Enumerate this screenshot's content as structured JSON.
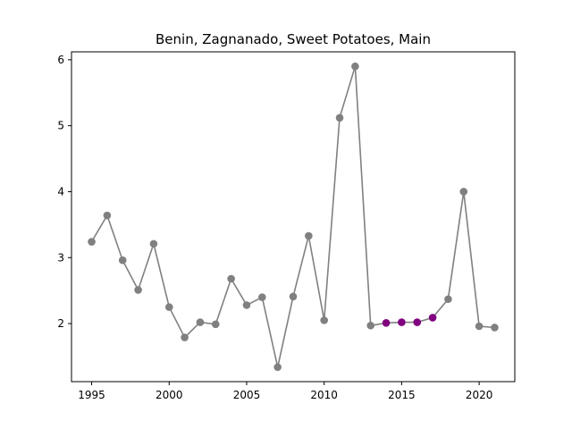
{
  "chart_data": {
    "type": "line",
    "title": "Benin, Zagnanado, Sweet Potatoes, Main",
    "xlabel": "",
    "ylabel": "",
    "xlim": [
      1993.7,
      2022.3
    ],
    "ylim": [
      1.12,
      6.12
    ],
    "xticks": [
      1995,
      2000,
      2005,
      2010,
      2015,
      2020
    ],
    "yticks": [
      2,
      3,
      4,
      5,
      6
    ],
    "grid": false,
    "legend": "none",
    "line_color": "#808080",
    "marker_color": "#808080",
    "highlight_color": "#800080",
    "series": [
      {
        "x": [
          1995,
          1996,
          1997,
          1998,
          1999,
          2000,
          2001,
          2002,
          2003,
          2004,
          2005,
          2006,
          2007,
          2008,
          2009,
          2010,
          2011,
          2012,
          2013,
          2014,
          2015,
          2016,
          2017,
          2018,
          2019,
          2020,
          2021
        ],
        "y": [
          3.24,
          3.64,
          2.96,
          2.51,
          3.21,
          2.25,
          1.79,
          2.02,
          1.99,
          2.68,
          2.28,
          2.4,
          1.34,
          2.41,
          3.33,
          2.05,
          5.12,
          5.9,
          1.97,
          2.01,
          2.02,
          2.02,
          2.09,
          2.37,
          4.0,
          1.96,
          1.94
        ],
        "highlight": [
          false,
          false,
          false,
          false,
          false,
          false,
          false,
          false,
          false,
          false,
          false,
          false,
          false,
          false,
          false,
          false,
          false,
          false,
          false,
          true,
          true,
          true,
          true,
          false,
          false,
          false,
          false
        ]
      }
    ]
  }
}
